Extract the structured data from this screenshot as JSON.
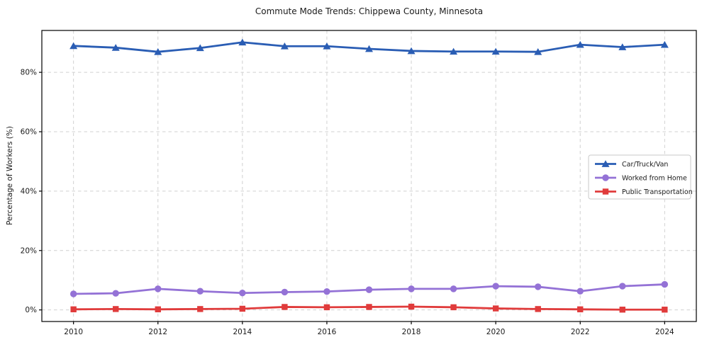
{
  "figure": {
    "background": "#ffffff",
    "text_color": "#1a1a1a",
    "axis_color": "#000000",
    "grid_color": "#d0d0d0",
    "legend_border_color": "#c9c9c9",
    "legend_background": "#ffffff"
  },
  "chart_data": {
    "type": "line",
    "title": "Commute Mode Trends: Chippewa County, Minnesota",
    "xlabel": "",
    "ylabel": "Percentage of Workers (%)",
    "x": [
      2010,
      2011,
      2012,
      2013,
      2014,
      2015,
      2016,
      2017,
      2018,
      2019,
      2020,
      2021,
      2022,
      2023,
      2024
    ],
    "xticks": [
      2010,
      2012,
      2014,
      2016,
      2018,
      2020,
      2022,
      2024
    ],
    "xtick_labels": [
      "2010",
      "2012",
      "2014",
      "2016",
      "2018",
      "2020",
      "2022",
      "2024"
    ],
    "yticks": [
      0,
      20,
      40,
      60,
      80
    ],
    "ytick_labels": [
      "0%",
      "20%",
      "40%",
      "60%",
      "80%"
    ],
    "xlim": [
      2009.25,
      2024.75
    ],
    "ylim": [
      -3.9,
      94.1
    ],
    "grid": true,
    "grid_style": "dashed",
    "legend_position": "right",
    "series": [
      {
        "name": "Car/Truck/Van",
        "color": "#2a5db4",
        "marker": "triangle-up",
        "values": [
          88.9,
          88.3,
          86.9,
          88.2,
          90.1,
          88.8,
          88.8,
          87.9,
          87.2,
          87.0,
          87.0,
          86.9,
          89.3,
          88.5,
          89.3
        ]
      },
      {
        "name": "Worked from Home",
        "color": "#9472d6",
        "marker": "circle",
        "values": [
          5.4,
          5.6,
          7.1,
          6.3,
          5.7,
          6.0,
          6.2,
          6.8,
          7.1,
          7.1,
          8.0,
          7.8,
          6.3,
          8.0,
          8.6
        ]
      },
      {
        "name": "Public Transportation",
        "color": "#e03b3b",
        "marker": "square",
        "values": [
          0.2,
          0.3,
          0.2,
          0.3,
          0.4,
          1.0,
          0.9,
          1.0,
          1.1,
          0.9,
          0.5,
          0.3,
          0.2,
          0.1,
          0.1
        ]
      }
    ]
  }
}
